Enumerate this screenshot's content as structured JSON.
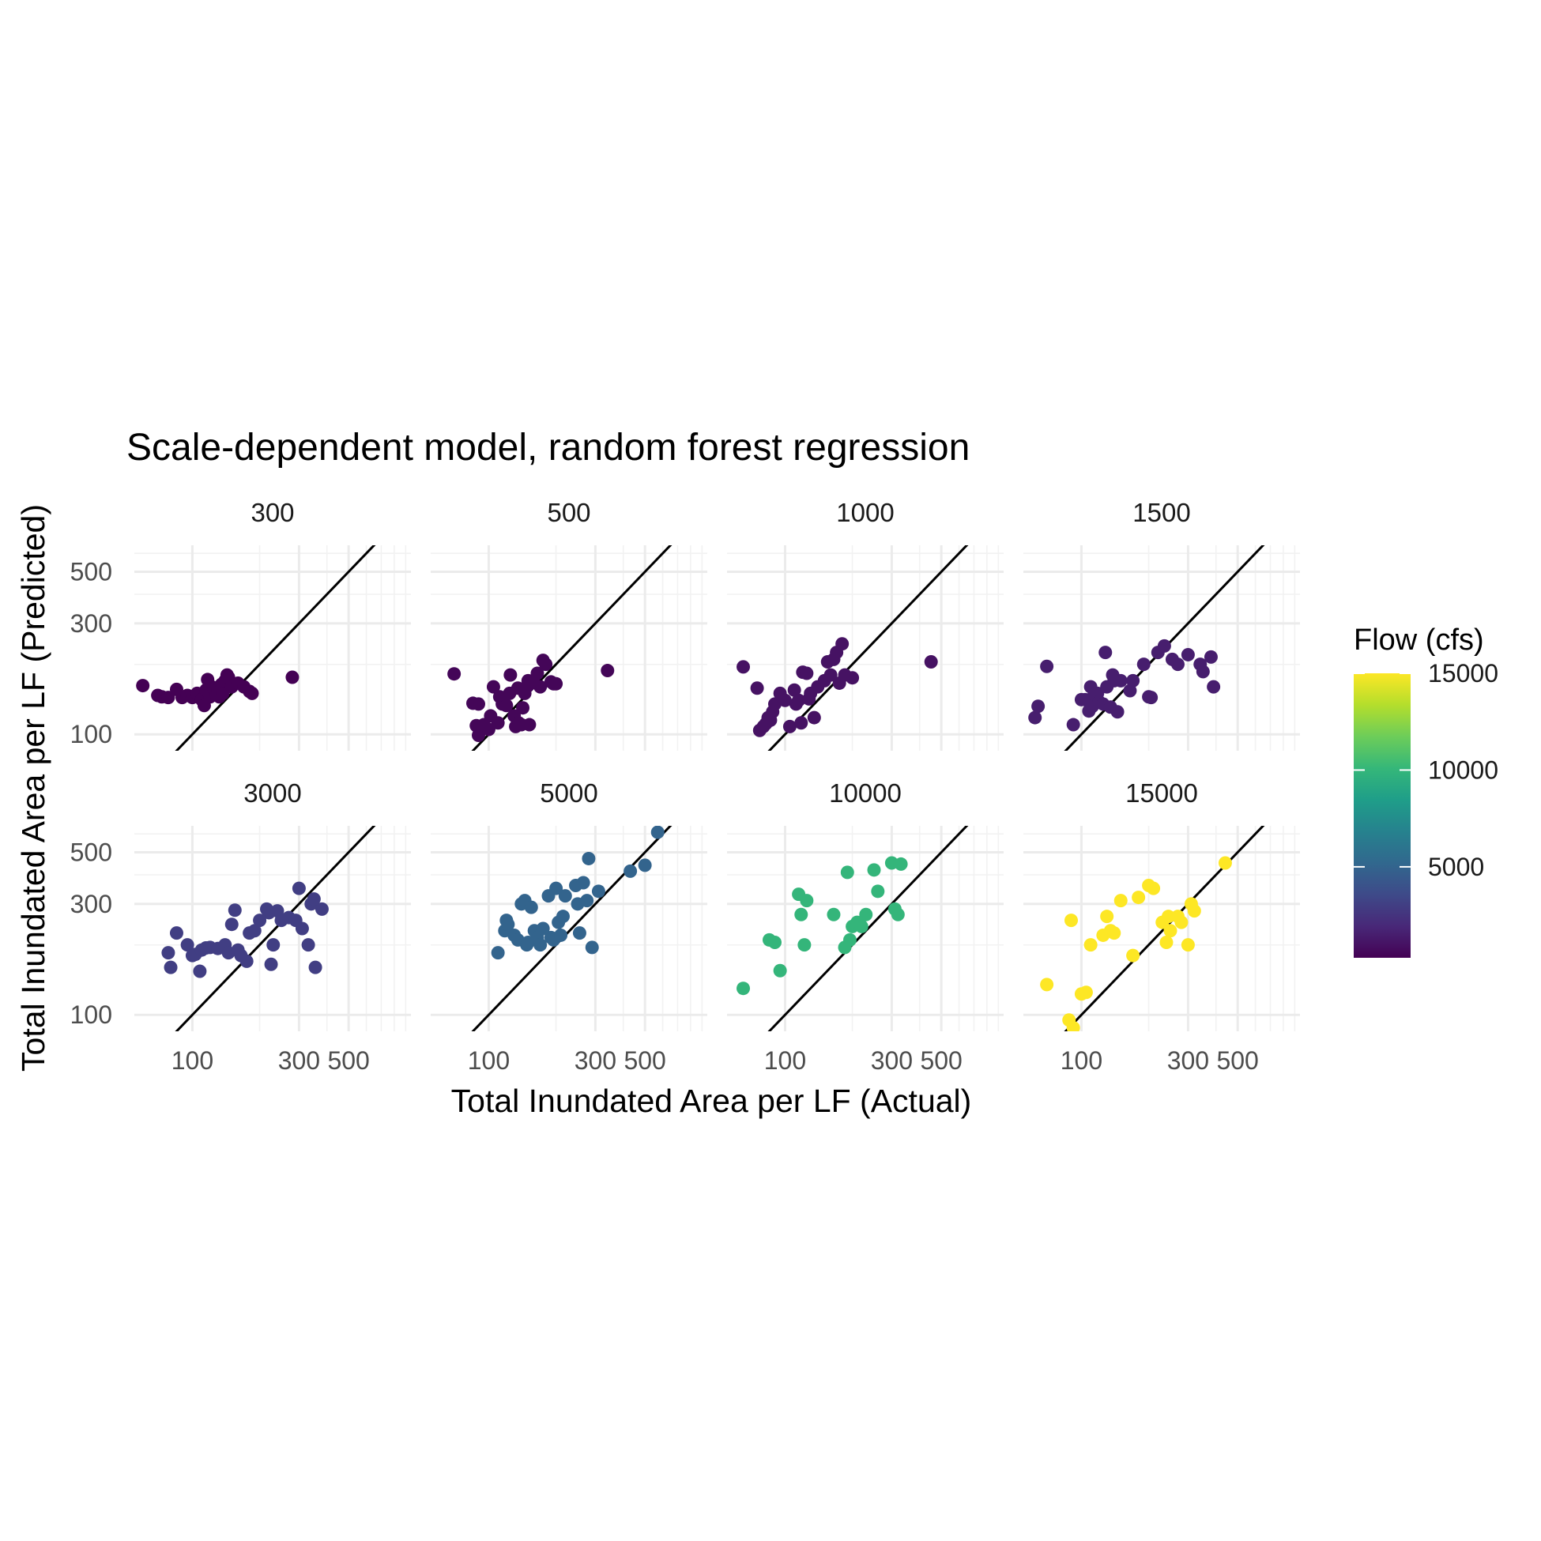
{
  "chart_data": {
    "type": "scatter",
    "title": "Scale-dependent model, random forest regression",
    "xlabel": "Total Inundated Area per LF (Actual)",
    "ylabel": "Total Inundated Area per LF (Predicted)",
    "x_scale": "log10",
    "y_scale": "log10",
    "xlim": [
      55,
      950
    ],
    "ylim": [
      85,
      650
    ],
    "x_ticks": [
      100,
      300,
      500
    ],
    "x_tick_labels": [
      "100",
      "300",
      "500"
    ],
    "y_ticks": [
      100,
      300,
      500
    ],
    "y_tick_labels": [
      "100",
      "300",
      "500"
    ],
    "grid": true,
    "reference_line": "y = x",
    "facet_layout": {
      "rows": 2,
      "cols": 4
    },
    "color_scale": {
      "title": "Flow (cfs)",
      "palette": "viridis",
      "min": 300,
      "max": 15000,
      "breaks": [
        5000,
        10000,
        15000
      ],
      "break_labels": [
        "5000",
        "10000",
        "15000"
      ],
      "stops": [
        "#440154",
        "#482878",
        "#3E4A89",
        "#31688E",
        "#26828E",
        "#1F9E89",
        "#35B779",
        "#6DCD59",
        "#B4DE2C",
        "#FDE725"
      ]
    },
    "legend_position": "right",
    "facets": [
      {
        "label": "300",
        "flow": 300,
        "points": [
          [
            60,
            162
          ],
          [
            70,
            147
          ],
          [
            73,
            145
          ],
          [
            78,
            144
          ],
          [
            85,
            156
          ],
          [
            90,
            144
          ],
          [
            95,
            147
          ],
          [
            100,
            144
          ],
          [
            105,
            150
          ],
          [
            110,
            141
          ],
          [
            113,
            133
          ],
          [
            115,
            155
          ],
          [
            117,
            172
          ],
          [
            120,
            145
          ],
          [
            122,
            160
          ],
          [
            125,
            158
          ],
          [
            128,
            148
          ],
          [
            130,
            155
          ],
          [
            132,
            145
          ],
          [
            135,
            164
          ],
          [
            137,
            150
          ],
          [
            140,
            170
          ],
          [
            143,
            180
          ],
          [
            145,
            176
          ],
          [
            150,
            160
          ],
          [
            160,
            166
          ],
          [
            170,
            160
          ],
          [
            180,
            153
          ],
          [
            185,
            150
          ],
          [
            280,
            176
          ]
        ]
      },
      {
        "label": "500",
        "flow": 500,
        "points": [
          [
            70,
            182
          ],
          [
            85,
            136
          ],
          [
            90,
            135
          ],
          [
            88,
            109
          ],
          [
            90,
            99
          ],
          [
            92,
            105
          ],
          [
            95,
            110
          ],
          [
            100,
            105
          ],
          [
            102,
            120
          ],
          [
            105,
            160
          ],
          [
            110,
            112
          ],
          [
            112,
            145
          ],
          [
            115,
            135
          ],
          [
            120,
            133
          ],
          [
            124,
            150
          ],
          [
            125,
            180
          ],
          [
            130,
            120
          ],
          [
            132,
            108
          ],
          [
            135,
            158
          ],
          [
            136,
            112
          ],
          [
            140,
            110
          ],
          [
            142,
            130
          ],
          [
            145,
            150
          ],
          [
            150,
            162
          ],
          [
            150,
            170
          ],
          [
            152,
            110
          ],
          [
            158,
            170
          ],
          [
            165,
            183
          ],
          [
            170,
            160
          ],
          [
            175,
            208
          ],
          [
            180,
            200
          ],
          [
            190,
            168
          ],
          [
            195,
            165
          ],
          [
            200,
            165
          ],
          [
            340,
            188
          ]
        ]
      },
      {
        "label": "1000",
        "flow": 1000,
        "points": [
          [
            65,
            195
          ],
          [
            75,
            158
          ],
          [
            77,
            104
          ],
          [
            80,
            108
          ],
          [
            82,
            111
          ],
          [
            84,
            118
          ],
          [
            86,
            115
          ],
          [
            88,
            125
          ],
          [
            90,
            135
          ],
          [
            95,
            150
          ],
          [
            100,
            140
          ],
          [
            105,
            108
          ],
          [
            110,
            155
          ],
          [
            112,
            135
          ],
          [
            115,
            140
          ],
          [
            118,
            112
          ],
          [
            120,
            185
          ],
          [
            125,
            183
          ],
          [
            128,
            142
          ],
          [
            130,
            150
          ],
          [
            135,
            118
          ],
          [
            140,
            160
          ],
          [
            150,
            170
          ],
          [
            155,
            205
          ],
          [
            160,
            180
          ],
          [
            165,
            210
          ],
          [
            170,
            225
          ],
          [
            175,
            166
          ],
          [
            180,
            245
          ],
          [
            185,
            180
          ],
          [
            200,
            175
          ],
          [
            450,
            205
          ]
        ]
      },
      {
        "label": "1500",
        "flow": 1500,
        "points": [
          [
            62,
            118
          ],
          [
            64,
            132
          ],
          [
            70,
            196
          ],
          [
            92,
            110
          ],
          [
            100,
            141
          ],
          [
            104,
            141
          ],
          [
            108,
            126
          ],
          [
            110,
            160
          ],
          [
            112,
            132
          ],
          [
            114,
            148
          ],
          [
            118,
            150
          ],
          [
            120,
            138
          ],
          [
            125,
            135
          ],
          [
            128,
            225
          ],
          [
            130,
            160
          ],
          [
            135,
            131
          ],
          [
            138,
            180
          ],
          [
            140,
            170
          ],
          [
            145,
            125
          ],
          [
            150,
            170
          ],
          [
            165,
            154
          ],
          [
            170,
            170
          ],
          [
            190,
            200
          ],
          [
            200,
            145
          ],
          [
            205,
            144
          ],
          [
            220,
            225
          ],
          [
            235,
            240
          ],
          [
            255,
            210
          ],
          [
            270,
            200
          ],
          [
            300,
            220
          ],
          [
            340,
            200
          ],
          [
            350,
            186
          ],
          [
            380,
            215
          ],
          [
            390,
            160
          ]
        ]
      },
      {
        "label": "3000",
        "flow": 3000,
        "points": [
          [
            78,
            185
          ],
          [
            80,
            160
          ],
          [
            85,
            225
          ],
          [
            95,
            200
          ],
          [
            100,
            180
          ],
          [
            103,
            182
          ],
          [
            108,
            154
          ],
          [
            110,
            190
          ],
          [
            115,
            194
          ],
          [
            120,
            195
          ],
          [
            130,
            193
          ],
          [
            140,
            200
          ],
          [
            145,
            185
          ],
          [
            150,
            245
          ],
          [
            155,
            282
          ],
          [
            160,
            190
          ],
          [
            165,
            180
          ],
          [
            175,
            170
          ],
          [
            180,
            225
          ],
          [
            190,
            230
          ],
          [
            200,
            255
          ],
          [
            215,
            285
          ],
          [
            220,
            275
          ],
          [
            225,
            165
          ],
          [
            230,
            200
          ],
          [
            240,
            280
          ],
          [
            250,
            255
          ],
          [
            270,
            262
          ],
          [
            290,
            255
          ],
          [
            300,
            350
          ],
          [
            310,
            235
          ],
          [
            330,
            200
          ],
          [
            340,
            300
          ],
          [
            350,
            315
          ],
          [
            355,
            160
          ],
          [
            380,
            285
          ]
        ]
      },
      {
        "label": "5000",
        "flow": 5000,
        "points": [
          [
            110,
            185
          ],
          [
            118,
            230
          ],
          [
            120,
            255
          ],
          [
            122,
            245
          ],
          [
            130,
            220
          ],
          [
            135,
            210
          ],
          [
            140,
            300
          ],
          [
            145,
            310
          ],
          [
            148,
            200
          ],
          [
            150,
            205
          ],
          [
            155,
            290
          ],
          [
            160,
            230
          ],
          [
            165,
            215
          ],
          [
            170,
            200
          ],
          [
            175,
            235
          ],
          [
            185,
            325
          ],
          [
            190,
            215
          ],
          [
            195,
            210
          ],
          [
            200,
            350
          ],
          [
            205,
            250
          ],
          [
            210,
            220
          ],
          [
            215,
            265
          ],
          [
            220,
            325
          ],
          [
            245,
            360
          ],
          [
            250,
            300
          ],
          [
            255,
            225
          ],
          [
            265,
            370
          ],
          [
            275,
            310
          ],
          [
            280,
            470
          ],
          [
            290,
            195
          ],
          [
            310,
            340
          ],
          [
            430,
            415
          ],
          [
            500,
            440
          ],
          [
            570,
            610
          ]
        ]
      },
      {
        "label": "10000",
        "flow": 10000,
        "points": [
          [
            65,
            130
          ],
          [
            85,
            210
          ],
          [
            90,
            205
          ],
          [
            95,
            155
          ],
          [
            115,
            330
          ],
          [
            118,
            270
          ],
          [
            122,
            200
          ],
          [
            125,
            310
          ],
          [
            165,
            270
          ],
          [
            185,
            195
          ],
          [
            190,
            410
          ],
          [
            195,
            210
          ],
          [
            200,
            240
          ],
          [
            210,
            250
          ],
          [
            215,
            245
          ],
          [
            220,
            240
          ],
          [
            230,
            270
          ],
          [
            250,
            420
          ],
          [
            260,
            340
          ],
          [
            300,
            450
          ],
          [
            310,
            285
          ],
          [
            320,
            270
          ],
          [
            330,
            445
          ]
        ]
      },
      {
        "label": "15000",
        "flow": 15000,
        "points": [
          [
            70,
            135
          ],
          [
            88,
            95
          ],
          [
            90,
            255
          ],
          [
            92,
            88
          ],
          [
            100,
            123
          ],
          [
            105,
            125
          ],
          [
            110,
            200
          ],
          [
            125,
            220
          ],
          [
            130,
            265
          ],
          [
            135,
            230
          ],
          [
            140,
            225
          ],
          [
            150,
            310
          ],
          [
            170,
            180
          ],
          [
            180,
            320
          ],
          [
            200,
            360
          ],
          [
            210,
            350
          ],
          [
            230,
            250
          ],
          [
            240,
            205
          ],
          [
            245,
            265
          ],
          [
            250,
            230
          ],
          [
            270,
            265
          ],
          [
            280,
            250
          ],
          [
            300,
            200
          ],
          [
            310,
            300
          ],
          [
            320,
            280
          ],
          [
            440,
            450
          ]
        ]
      }
    ]
  }
}
